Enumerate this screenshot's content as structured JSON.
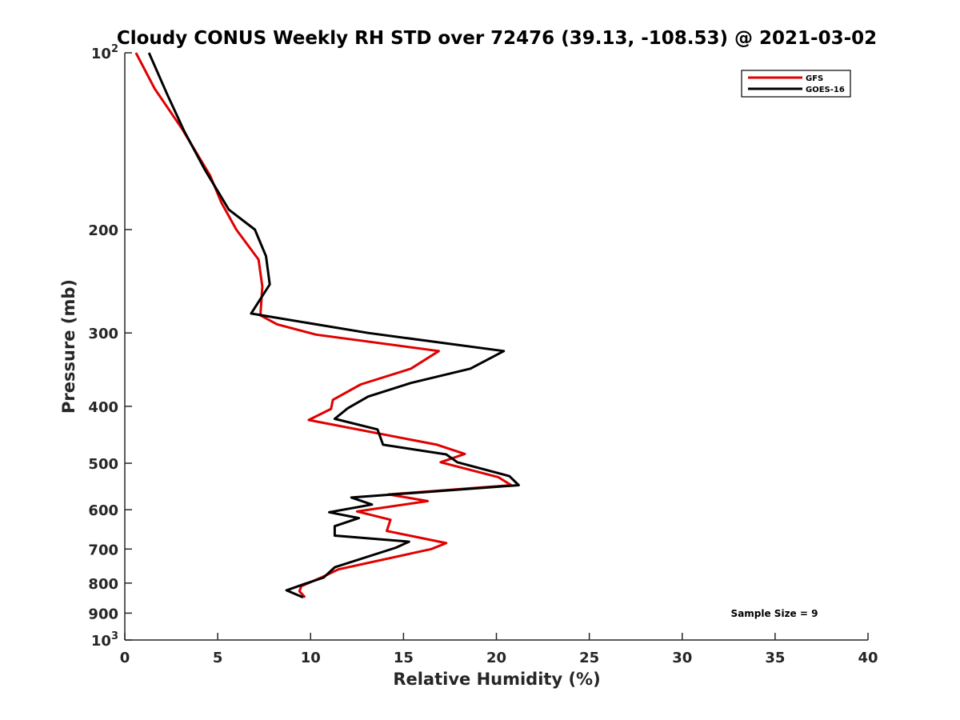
{
  "chart_data": {
    "type": "line",
    "title": "Cloudy CONUS Weekly RH STD over 72476 (39.13, -108.53) @ 2021-03-02",
    "xlabel": "Relative Humidity (%)",
    "ylabel": "Pressure (mb)",
    "xlim": [
      0,
      40
    ],
    "ylim": [
      100,
      1000
    ],
    "y_scale": "log",
    "y_reversed": true,
    "grid": false,
    "legend_position": "top-right",
    "x_ticks": [
      0,
      5,
      10,
      15,
      20,
      25,
      30,
      35,
      40
    ],
    "x_tick_labels": [
      "0",
      "5",
      "10",
      "15",
      "20",
      "25",
      "30",
      "35",
      "40"
    ],
    "y_ticks": [
      {
        "value": 100,
        "base": "10",
        "exp": "2"
      },
      {
        "value": 200,
        "label": "200"
      },
      {
        "value": 300,
        "label": "300"
      },
      {
        "value": 400,
        "label": "400"
      },
      {
        "value": 500,
        "label": "500"
      },
      {
        "value": 600,
        "label": "600"
      },
      {
        "value": 700,
        "label": "700"
      },
      {
        "value": 800,
        "label": "800"
      },
      {
        "value": 900,
        "label": "900"
      },
      {
        "value": 1000,
        "base": "10",
        "exp": "3"
      }
    ],
    "annotation": "Sample Size = 9",
    "series": [
      {
        "name": "GFS",
        "color": "#e00000",
        "points": [
          {
            "x": 0.6,
            "y": 100
          },
          {
            "x": 1.6,
            "y": 115
          },
          {
            "x": 3.1,
            "y": 135
          },
          {
            "x": 4.6,
            "y": 162
          },
          {
            "x": 5.2,
            "y": 180
          },
          {
            "x": 6.0,
            "y": 200
          },
          {
            "x": 7.2,
            "y": 225
          },
          {
            "x": 7.4,
            "y": 250
          },
          {
            "x": 7.3,
            "y": 280
          },
          {
            "x": 8.2,
            "y": 290
          },
          {
            "x": 10.3,
            "y": 302
          },
          {
            "x": 16.9,
            "y": 322
          },
          {
            "x": 15.4,
            "y": 345
          },
          {
            "x": 12.7,
            "y": 367
          },
          {
            "x": 11.2,
            "y": 390
          },
          {
            "x": 11.1,
            "y": 404
          },
          {
            "x": 9.9,
            "y": 422
          },
          {
            "x": 16.8,
            "y": 465
          },
          {
            "x": 18.3,
            "y": 482
          },
          {
            "x": 17.0,
            "y": 498
          },
          {
            "x": 20.1,
            "y": 528
          },
          {
            "x": 20.8,
            "y": 545
          },
          {
            "x": 14.2,
            "y": 565
          },
          {
            "x": 16.3,
            "y": 580
          },
          {
            "x": 12.5,
            "y": 604
          },
          {
            "x": 14.3,
            "y": 624
          },
          {
            "x": 14.1,
            "y": 652
          },
          {
            "x": 17.3,
            "y": 684
          },
          {
            "x": 16.5,
            "y": 700
          },
          {
            "x": 11.5,
            "y": 758
          },
          {
            "x": 10.6,
            "y": 782
          },
          {
            "x": 9.5,
            "y": 810
          },
          {
            "x": 9.4,
            "y": 826
          },
          {
            "x": 9.7,
            "y": 846
          }
        ]
      },
      {
        "name": "GOES-16",
        "color": "#000000",
        "points": [
          {
            "x": 1.3,
            "y": 100
          },
          {
            "x": 2.3,
            "y": 118
          },
          {
            "x": 3.2,
            "y": 136
          },
          {
            "x": 4.3,
            "y": 158
          },
          {
            "x": 5.6,
            "y": 185
          },
          {
            "x": 7.0,
            "y": 200
          },
          {
            "x": 7.6,
            "y": 222
          },
          {
            "x": 7.8,
            "y": 248
          },
          {
            "x": 6.8,
            "y": 278
          },
          {
            "x": 13.1,
            "y": 300
          },
          {
            "x": 20.4,
            "y": 322
          },
          {
            "x": 18.6,
            "y": 345
          },
          {
            "x": 15.4,
            "y": 365
          },
          {
            "x": 13.1,
            "y": 385
          },
          {
            "x": 12.0,
            "y": 403
          },
          {
            "x": 11.3,
            "y": 420
          },
          {
            "x": 13.6,
            "y": 438
          },
          {
            "x": 13.9,
            "y": 465
          },
          {
            "x": 17.3,
            "y": 483
          },
          {
            "x": 17.9,
            "y": 498
          },
          {
            "x": 20.7,
            "y": 526
          },
          {
            "x": 21.2,
            "y": 545
          },
          {
            "x": 12.2,
            "y": 572
          },
          {
            "x": 13.3,
            "y": 588
          },
          {
            "x": 11.0,
            "y": 606
          },
          {
            "x": 12.6,
            "y": 620
          },
          {
            "x": 11.3,
            "y": 640
          },
          {
            "x": 11.3,
            "y": 664
          },
          {
            "x": 15.3,
            "y": 680
          },
          {
            "x": 14.6,
            "y": 696
          },
          {
            "x": 11.3,
            "y": 752
          },
          {
            "x": 10.7,
            "y": 783
          },
          {
            "x": 9.7,
            "y": 802
          },
          {
            "x": 8.7,
            "y": 823
          },
          {
            "x": 9.6,
            "y": 846
          }
        ]
      }
    ]
  }
}
